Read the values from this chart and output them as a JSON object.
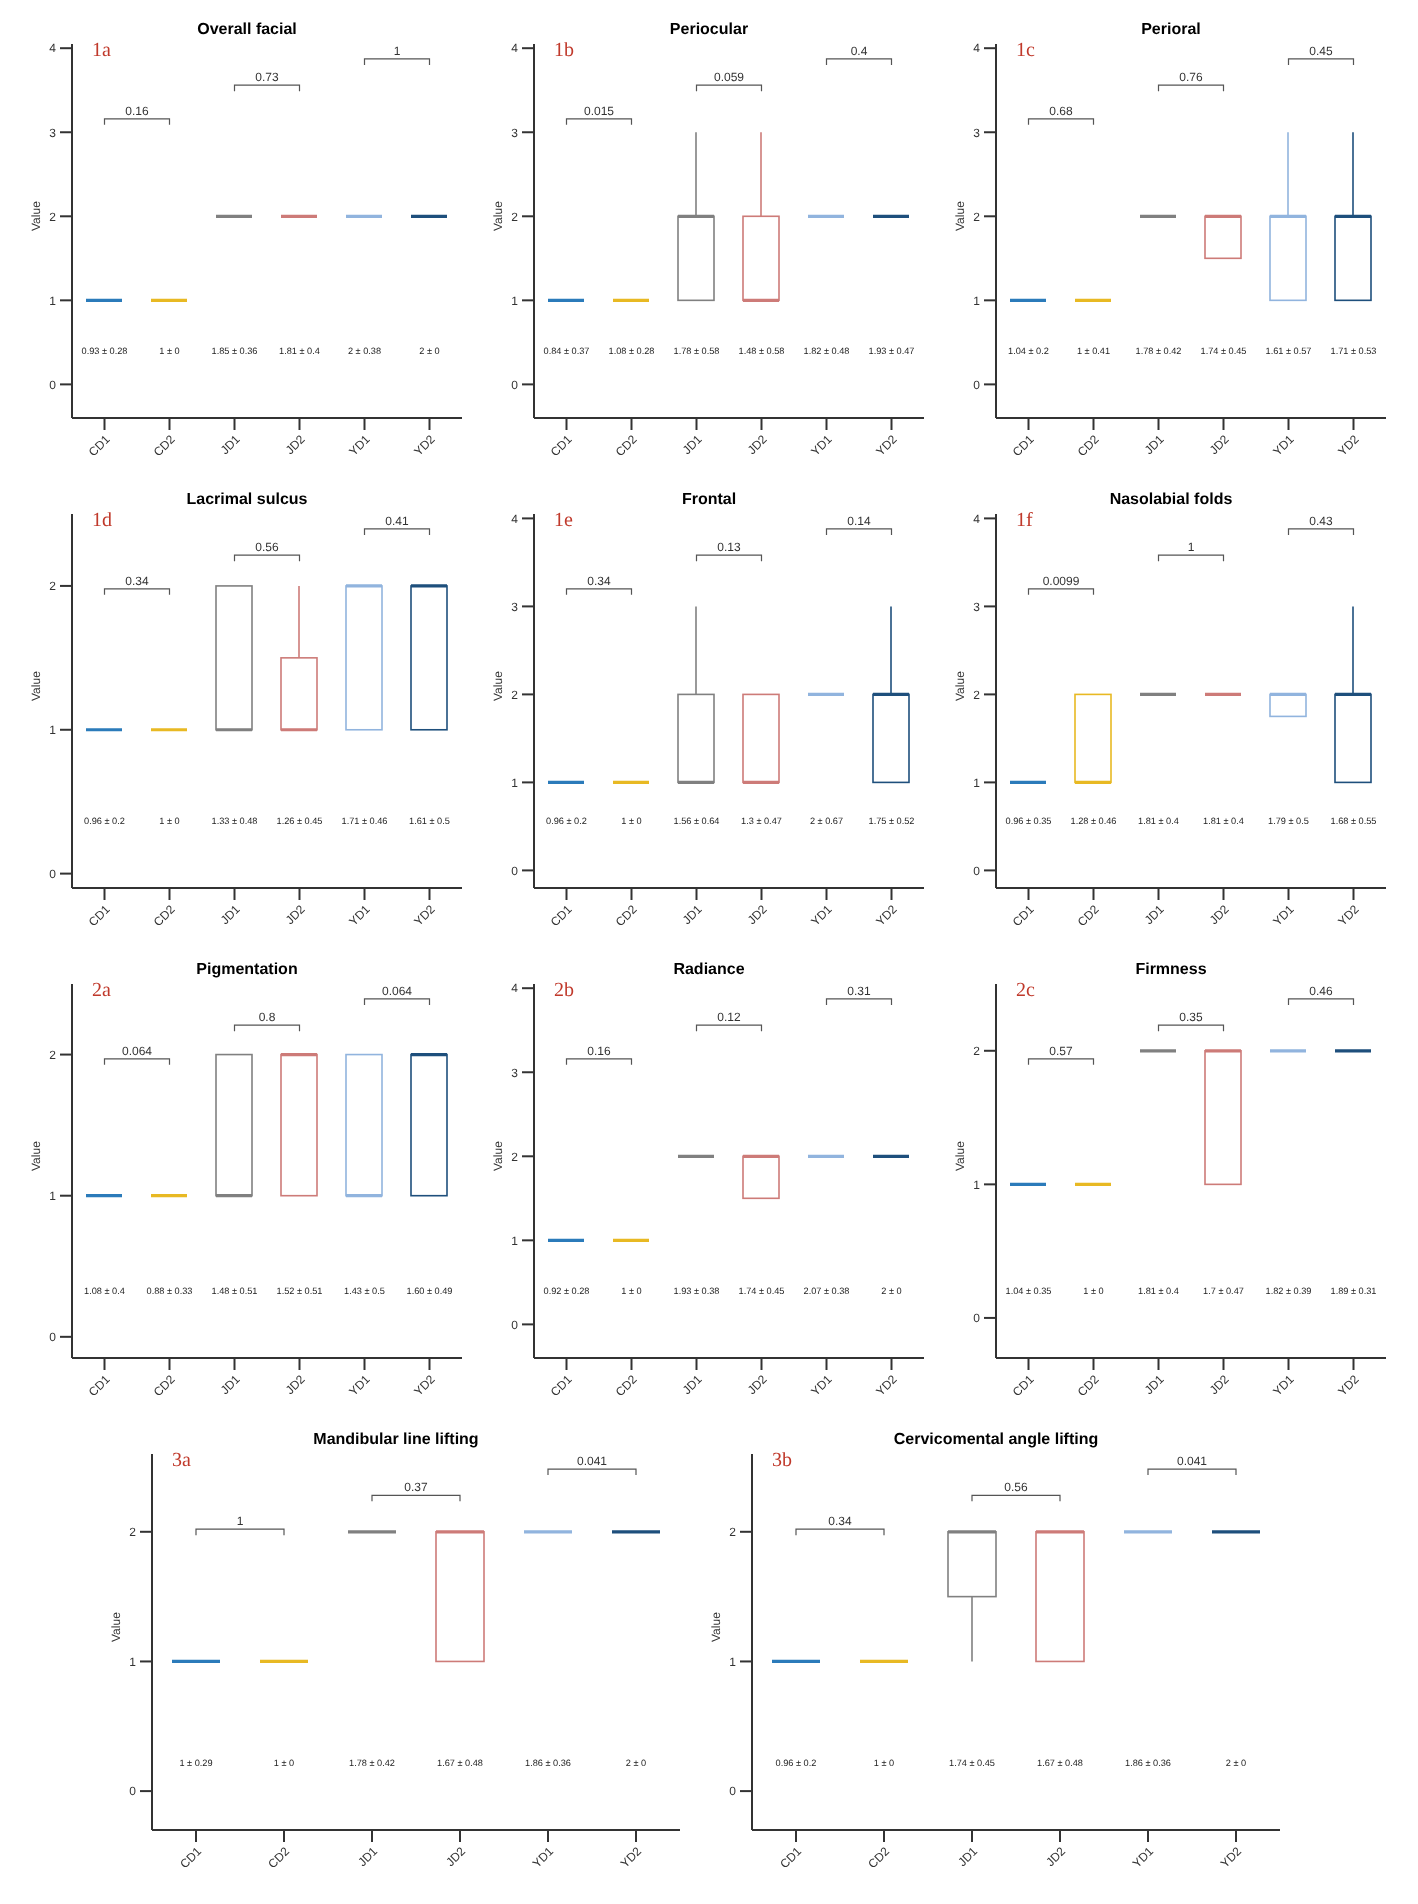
{
  "chart_data": [
    {
      "type": "box",
      "title": "Overall facial",
      "ylabel": "Value",
      "categories": [
        "CD1",
        "CD2",
        "JD1",
        "JD2",
        "YD1",
        "YD2"
      ],
      "colors": [
        "#2b7bba",
        "#e8b923",
        "#808080",
        "#cd7b78",
        "#91b4de",
        "#1e4f7c"
      ],
      "ylim": [
        -0.4,
        4.05
      ],
      "yticks": [
        0,
        1,
        2,
        3,
        4
      ],
      "boxes": [
        {
          "low": 1,
          "q1": 1,
          "median": 1,
          "q3": 1,
          "high": 1
        },
        {
          "low": 1,
          "q1": 1,
          "median": 1,
          "q3": 1,
          "high": 1
        },
        {
          "low": 2,
          "q1": 2,
          "median": 2,
          "q3": 2,
          "high": 2
        },
        {
          "low": 2,
          "q1": 2,
          "median": 2,
          "q3": 2,
          "high": 2
        },
        {
          "low": 2,
          "q1": 2,
          "median": 2,
          "q3": 2,
          "high": 2
        },
        {
          "low": 2,
          "q1": 2,
          "median": 2,
          "q3": 2,
          "high": 2
        }
      ],
      "annotations": [
        "1a",
        "0.16",
        "0.73",
        "1",
        "0.93 ± 0.28",
        "1 ± 0",
        "1.85 ± 0.36",
        "1.81 ± 0.4",
        "2 ± 0.38",
        "2 ± 0"
      ]
    },
    {
      "type": "box",
      "title": "Periocular",
      "ylabel": "Value",
      "categories": [
        "CD1",
        "CD2",
        "JD1",
        "JD2",
        "YD1",
        "YD2"
      ],
      "colors": [
        "#2b7bba",
        "#e8b923",
        "#808080",
        "#cd7b78",
        "#91b4de",
        "#1e4f7c"
      ],
      "ylim": [
        -0.4,
        4.05
      ],
      "yticks": [
        0,
        1,
        2,
        3,
        4
      ],
      "boxes": [
        {
          "low": 1,
          "q1": 1,
          "median": 1,
          "q3": 1,
          "high": 1
        },
        {
          "low": 1,
          "q1": 1,
          "median": 1,
          "q3": 1,
          "high": 1
        },
        {
          "low": 1,
          "q1": 1,
          "median": 2,
          "q3": 2,
          "high": 3
        },
        {
          "low": 1,
          "q1": 1,
          "median": 1,
          "q3": 2,
          "high": 3
        },
        {
          "low": 2,
          "q1": 2,
          "median": 2,
          "q3": 2,
          "high": 2
        },
        {
          "low": 2,
          "q1": 2,
          "median": 2,
          "q3": 2,
          "high": 2
        }
      ],
      "annotations": [
        "1b",
        "0.015",
        "0.059",
        "0.4",
        "0.84 ± 0.37",
        "1.08 ± 0.28",
        "1.78 ± 0.58",
        "1.48 ± 0.58",
        "1.82 ± 0.48",
        "1.93 ± 0.47"
      ]
    },
    {
      "type": "box",
      "title": "Perioral",
      "ylabel": "Value",
      "categories": [
        "CD1",
        "CD2",
        "JD1",
        "JD2",
        "YD1",
        "YD2"
      ],
      "colors": [
        "#2b7bba",
        "#e8b923",
        "#808080",
        "#cd7b78",
        "#91b4de",
        "#1e4f7c"
      ],
      "ylim": [
        -0.4,
        4.05
      ],
      "yticks": [
        0,
        1,
        2,
        3,
        4
      ],
      "boxes": [
        {
          "low": 1,
          "q1": 1,
          "median": 1,
          "q3": 1,
          "high": 1
        },
        {
          "low": 1,
          "q1": 1,
          "median": 1,
          "q3": 1,
          "high": 1
        },
        {
          "low": 2,
          "q1": 2,
          "median": 2,
          "q3": 2,
          "high": 2
        },
        {
          "low": 1.5,
          "q1": 1.5,
          "median": 2,
          "q3": 2,
          "high": 2
        },
        {
          "low": 1,
          "q1": 1,
          "median": 2,
          "q3": 2,
          "high": 3
        },
        {
          "low": 1,
          "q1": 1,
          "median": 2,
          "q3": 2,
          "high": 3
        }
      ],
      "annotations": [
        "1c",
        "0.68",
        "0.76",
        "0.45",
        "1.04 ± 0.2",
        "1 ± 0.41",
        "1.78 ± 0.42",
        "1.74 ± 0.45",
        "1.61 ± 0.57",
        "1.71 ± 0.53"
      ]
    },
    {
      "type": "box",
      "title": "Lacrimal sulcus",
      "ylabel": "Value",
      "categories": [
        "CD1",
        "CD2",
        "JD1",
        "JD2",
        "YD1",
        "YD2"
      ],
      "colors": [
        "#2b7bba",
        "#e8b923",
        "#808080",
        "#cd7b78",
        "#91b4de",
        "#1e4f7c"
      ],
      "ylim": [
        -0.1,
        2.5
      ],
      "yticks": [
        0,
        1,
        2
      ],
      "boxes": [
        {
          "low": 1,
          "q1": 1,
          "median": 1,
          "q3": 1,
          "high": 1
        },
        {
          "low": 1,
          "q1": 1,
          "median": 1,
          "q3": 1,
          "high": 1
        },
        {
          "low": 1,
          "q1": 1,
          "median": 1,
          "q3": 2,
          "high": 2
        },
        {
          "low": 1,
          "q1": 1,
          "median": 1,
          "q3": 1.5,
          "high": 2
        },
        {
          "low": 1,
          "q1": 1,
          "median": 2,
          "q3": 2,
          "high": 2
        },
        {
          "low": 1,
          "q1": 1,
          "median": 2,
          "q3": 2,
          "high": 2
        }
      ],
      "annotations": [
        "1d",
        "0.34",
        "0.56",
        "0.41",
        "0.96 ± 0.2",
        "1 ± 0",
        "1.33 ± 0.48",
        "1.26 ± 0.45",
        "1.71 ± 0.46",
        "1.61 ± 0.5"
      ]
    },
    {
      "type": "box",
      "title": "Frontal",
      "ylabel": "Value",
      "categories": [
        "CD1",
        "CD2",
        "JD1",
        "JD2",
        "YD1",
        "YD2"
      ],
      "colors": [
        "#2b7bba",
        "#e8b923",
        "#808080",
        "#cd7b78",
        "#91b4de",
        "#1e4f7c"
      ],
      "ylim": [
        -0.2,
        4.05
      ],
      "yticks": [
        0,
        1,
        2,
        3,
        4
      ],
      "boxes": [
        {
          "low": 1,
          "q1": 1,
          "median": 1,
          "q3": 1,
          "high": 1
        },
        {
          "low": 1,
          "q1": 1,
          "median": 1,
          "q3": 1,
          "high": 1
        },
        {
          "low": 1,
          "q1": 1,
          "median": 1,
          "q3": 2,
          "high": 3
        },
        {
          "low": 1,
          "q1": 1,
          "median": 1,
          "q3": 2,
          "high": 2
        },
        {
          "low": 2,
          "q1": 2,
          "median": 2,
          "q3": 2,
          "high": 2
        },
        {
          "low": 1,
          "q1": 1,
          "median": 2,
          "q3": 2,
          "high": 3
        }
      ],
      "annotations": [
        "1e",
        "0.34",
        "0.13",
        "0.14",
        "0.96 ± 0.2",
        "1 ± 0",
        "1.56 ± 0.64",
        "1.3 ± 0.47",
        "2 ± 0.67",
        "1.75 ± 0.52"
      ]
    },
    {
      "type": "box",
      "title": "Nasolabial folds",
      "ylabel": "Value",
      "categories": [
        "CD1",
        "CD2",
        "JD1",
        "JD2",
        "YD1",
        "YD2"
      ],
      "colors": [
        "#2b7bba",
        "#e8b923",
        "#808080",
        "#cd7b78",
        "#91b4de",
        "#1e4f7c"
      ],
      "ylim": [
        -0.2,
        4.05
      ],
      "yticks": [
        0,
        1,
        2,
        3,
        4
      ],
      "boxes": [
        {
          "low": 1,
          "q1": 1,
          "median": 1,
          "q3": 1,
          "high": 1
        },
        {
          "low": 1,
          "q1": 1,
          "median": 1,
          "q3": 2,
          "high": 2
        },
        {
          "low": 2,
          "q1": 2,
          "median": 2,
          "q3": 2,
          "high": 2
        },
        {
          "low": 2,
          "q1": 2,
          "median": 2,
          "q3": 2,
          "high": 2
        },
        {
          "low": 1.75,
          "q1": 1.75,
          "median": 2,
          "q3": 2,
          "high": 2
        },
        {
          "low": 1,
          "q1": 1,
          "median": 2,
          "q3": 2,
          "high": 3
        }
      ],
      "annotations": [
        "1f",
        "0.0099",
        "1",
        "0.43",
        "0.96 ± 0.35",
        "1.28 ± 0.46",
        "1.81 ± 0.4",
        "1.81 ± 0.4",
        "1.79 ± 0.5",
        "1.68 ± 0.55"
      ]
    },
    {
      "type": "box",
      "title": "Pigmentation",
      "ylabel": "Value",
      "categories": [
        "CD1",
        "CD2",
        "JD1",
        "JD2",
        "YD1",
        "YD2"
      ],
      "colors": [
        "#2b7bba",
        "#e8b923",
        "#808080",
        "#cd7b78",
        "#91b4de",
        "#1e4f7c"
      ],
      "ylim": [
        -0.15,
        2.5
      ],
      "yticks": [
        0,
        1,
        2
      ],
      "boxes": [
        {
          "low": 1,
          "q1": 1,
          "median": 1,
          "q3": 1,
          "high": 1
        },
        {
          "low": 1,
          "q1": 1,
          "median": 1,
          "q3": 1,
          "high": 1
        },
        {
          "low": 1,
          "q1": 1,
          "median": 1,
          "q3": 2,
          "high": 2
        },
        {
          "low": 1,
          "q1": 1,
          "median": 2,
          "q3": 2,
          "high": 2
        },
        {
          "low": 1,
          "q1": 1,
          "median": 1,
          "q3": 2,
          "high": 2
        },
        {
          "low": 1,
          "q1": 1,
          "median": 2,
          "q3": 2,
          "high": 2
        }
      ],
      "annotations": [
        "2a",
        "0.064",
        "0.8",
        "0.064",
        "1.08 ± 0.4",
        "0.88 ± 0.33",
        "1.48 ± 0.51",
        "1.52 ± 0.51",
        "1.43 ± 0.5",
        "1.60 ± 0.49"
      ]
    },
    {
      "type": "box",
      "title": "Radiance",
      "ylabel": "Value",
      "categories": [
        "CD1",
        "CD2",
        "JD1",
        "JD2",
        "YD1",
        "YD2"
      ],
      "colors": [
        "#2b7bba",
        "#e8b923",
        "#808080",
        "#cd7b78",
        "#91b4de",
        "#1e4f7c"
      ],
      "ylim": [
        -0.4,
        4.05
      ],
      "yticks": [
        0,
        1,
        2,
        3,
        4
      ],
      "boxes": [
        {
          "low": 1,
          "q1": 1,
          "median": 1,
          "q3": 1,
          "high": 1
        },
        {
          "low": 1,
          "q1": 1,
          "median": 1,
          "q3": 1,
          "high": 1
        },
        {
          "low": 2,
          "q1": 2,
          "median": 2,
          "q3": 2,
          "high": 2
        },
        {
          "low": 1.5,
          "q1": 1.5,
          "median": 2,
          "q3": 2,
          "high": 2
        },
        {
          "low": 2,
          "q1": 2,
          "median": 2,
          "q3": 2,
          "high": 2
        },
        {
          "low": 2,
          "q1": 2,
          "median": 2,
          "q3": 2,
          "high": 2
        }
      ],
      "annotations": [
        "2b",
        "0.16",
        "0.12",
        "0.31",
        "0.92 ± 0.28",
        "1 ± 0",
        "1.93 ± 0.38",
        "1.74 ± 0.45",
        "2.07 ± 0.38",
        "2 ± 0"
      ]
    },
    {
      "type": "box",
      "title": "Firmness",
      "ylabel": "Value",
      "categories": [
        "CD1",
        "CD2",
        "JD1",
        "JD2",
        "YD1",
        "YD2"
      ],
      "colors": [
        "#2b7bba",
        "#e8b923",
        "#808080",
        "#cd7b78",
        "#91b4de",
        "#1e4f7c"
      ],
      "ylim": [
        -0.3,
        2.5
      ],
      "yticks": [
        0,
        1,
        2
      ],
      "boxes": [
        {
          "low": 1,
          "q1": 1,
          "median": 1,
          "q3": 1,
          "high": 1
        },
        {
          "low": 1,
          "q1": 1,
          "median": 1,
          "q3": 1,
          "high": 1
        },
        {
          "low": 2,
          "q1": 2,
          "median": 2,
          "q3": 2,
          "high": 2
        },
        {
          "low": 1,
          "q1": 1,
          "median": 2,
          "q3": 2,
          "high": 2
        },
        {
          "low": 2,
          "q1": 2,
          "median": 2,
          "q3": 2,
          "high": 2
        },
        {
          "low": 2,
          "q1": 2,
          "median": 2,
          "q3": 2,
          "high": 2
        }
      ],
      "annotations": [
        "2c",
        "0.57",
        "0.35",
        "0.46",
        "1.04 ± 0.35",
        "1 ± 0",
        "1.81 ± 0.4",
        "1.7 ± 0.47",
        "1.82 ± 0.39",
        "1.89 ± 0.31"
      ]
    },
    {
      "type": "box",
      "title": "Mandibular line lifting",
      "ylabel": "Value",
      "categories": [
        "CD1",
        "CD2",
        "JD1",
        "JD2",
        "YD1",
        "YD2"
      ],
      "colors": [
        "#2b7bba",
        "#e8b923",
        "#808080",
        "#cd7b78",
        "#91b4de",
        "#1e4f7c"
      ],
      "ylim": [
        -0.3,
        2.6
      ],
      "yticks": [
        0,
        1,
        2
      ],
      "boxes": [
        {
          "low": 1,
          "q1": 1,
          "median": 1,
          "q3": 1,
          "high": 1
        },
        {
          "low": 1,
          "q1": 1,
          "median": 1,
          "q3": 1,
          "high": 1
        },
        {
          "low": 2,
          "q1": 2,
          "median": 2,
          "q3": 2,
          "high": 2
        },
        {
          "low": 1,
          "q1": 1,
          "median": 2,
          "q3": 2,
          "high": 2
        },
        {
          "low": 2,
          "q1": 2,
          "median": 2,
          "q3": 2,
          "high": 2
        },
        {
          "low": 2,
          "q1": 2,
          "median": 2,
          "q3": 2,
          "high": 2
        }
      ],
      "annotations": [
        "3a",
        "1",
        "0.37",
        "0.041",
        "1 ± 0.29",
        "1 ± 0",
        "1.78 ± 0.42",
        "1.67 ± 0.48",
        "1.86 ± 0.36",
        "2 ± 0"
      ]
    },
    {
      "type": "box",
      "title": "Cervicomental angle lifting",
      "ylabel": "Value",
      "categories": [
        "CD1",
        "CD2",
        "JD1",
        "JD2",
        "YD1",
        "YD2"
      ],
      "colors": [
        "#2b7bba",
        "#e8b923",
        "#808080",
        "#cd7b78",
        "#91b4de",
        "#1e4f7c"
      ],
      "ylim": [
        -0.3,
        2.6
      ],
      "yticks": [
        0,
        1,
        2
      ],
      "boxes": [
        {
          "low": 1,
          "q1": 1,
          "median": 1,
          "q3": 1,
          "high": 1
        },
        {
          "low": 1,
          "q1": 1,
          "median": 1,
          "q3": 1,
          "high": 1
        },
        {
          "low": 1,
          "q1": 1.5,
          "median": 2,
          "q3": 2,
          "high": 2
        },
        {
          "low": 1,
          "q1": 1,
          "median": 2,
          "q3": 2,
          "high": 2
        },
        {
          "low": 2,
          "q1": 2,
          "median": 2,
          "q3": 2,
          "high": 2
        },
        {
          "low": 2,
          "q1": 2,
          "median": 2,
          "q3": 2,
          "high": 2
        }
      ],
      "annotations": [
        "3b",
        "0.34",
        "0.56",
        "0.041",
        "0.96 ± 0.2",
        "1 ± 0",
        "1.74 ± 0.45",
        "1.67 ± 0.48",
        "1.86 ± 0.36",
        "2 ± 0"
      ]
    }
  ]
}
